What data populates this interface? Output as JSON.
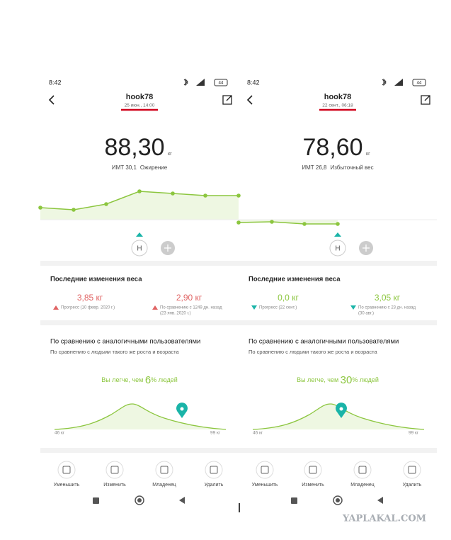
{
  "screens": [
    {
      "status": {
        "time": "8:42",
        "battery": "44"
      },
      "header": {
        "title": "hook78",
        "date": "25 июн., 14:00"
      },
      "weight": {
        "value": "88,30",
        "unit": "кг",
        "bmi": "ИМТ 30,1",
        "category": "Ожирение"
      },
      "marker": "H",
      "changes": {
        "title": "Последние изменения веса",
        "items": [
          {
            "value": "3,85 кг",
            "direction": "up",
            "note": [
              "Прогресс (10 февр. 2020 г.)"
            ]
          },
          {
            "value": "2,90 кг",
            "direction": "up",
            "note": [
              "По сравнению с 1249 дн. назад",
              "(23 янв. 2020 г.)"
            ]
          }
        ]
      },
      "comparison": {
        "title": "По сравнению с аналогичными пользователями",
        "subtitle": "По сравнению с людьми такого же роста и возраста",
        "text_before": "Вы легче, чем ",
        "percent": "6",
        "text_after": "% людей",
        "min": "46 кг",
        "max": "99 кг"
      },
      "actions": [
        "Уменьшить",
        "Изменить",
        "Младенец",
        "Удалить"
      ]
    },
    {
      "status": {
        "time": "8:42",
        "battery": "44"
      },
      "header": {
        "title": "hook78",
        "date": "22 сент., 06:18"
      },
      "weight": {
        "value": "78,60",
        "unit": "кг",
        "bmi": "ИМТ 26,8",
        "category": "Избыточный вес"
      },
      "marker": "H",
      "changes": {
        "title": "Последние изменения веса",
        "items": [
          {
            "value": "0,0 кг",
            "direction": "down",
            "note": [
              "Прогресс (22 сент.)"
            ]
          },
          {
            "value": "3,05 кг",
            "direction": "down",
            "note": [
              "По сравнению с 23 дн. назад",
              "(30 авг.)"
            ]
          }
        ]
      },
      "comparison": {
        "title": "По сравнению с аналогичными пользователями",
        "subtitle": "По сравнению с людьми такого же роста и возраста",
        "text_before": "Вы легче, чем ",
        "percent": "30",
        "text_after": "% людей",
        "min": "46 кг",
        "max": "99 кг"
      },
      "actions": [
        "Уменьшить",
        "Изменить",
        "Младенец",
        "Удалить"
      ]
    }
  ],
  "watermark": "YAPLAKAL.COM"
}
